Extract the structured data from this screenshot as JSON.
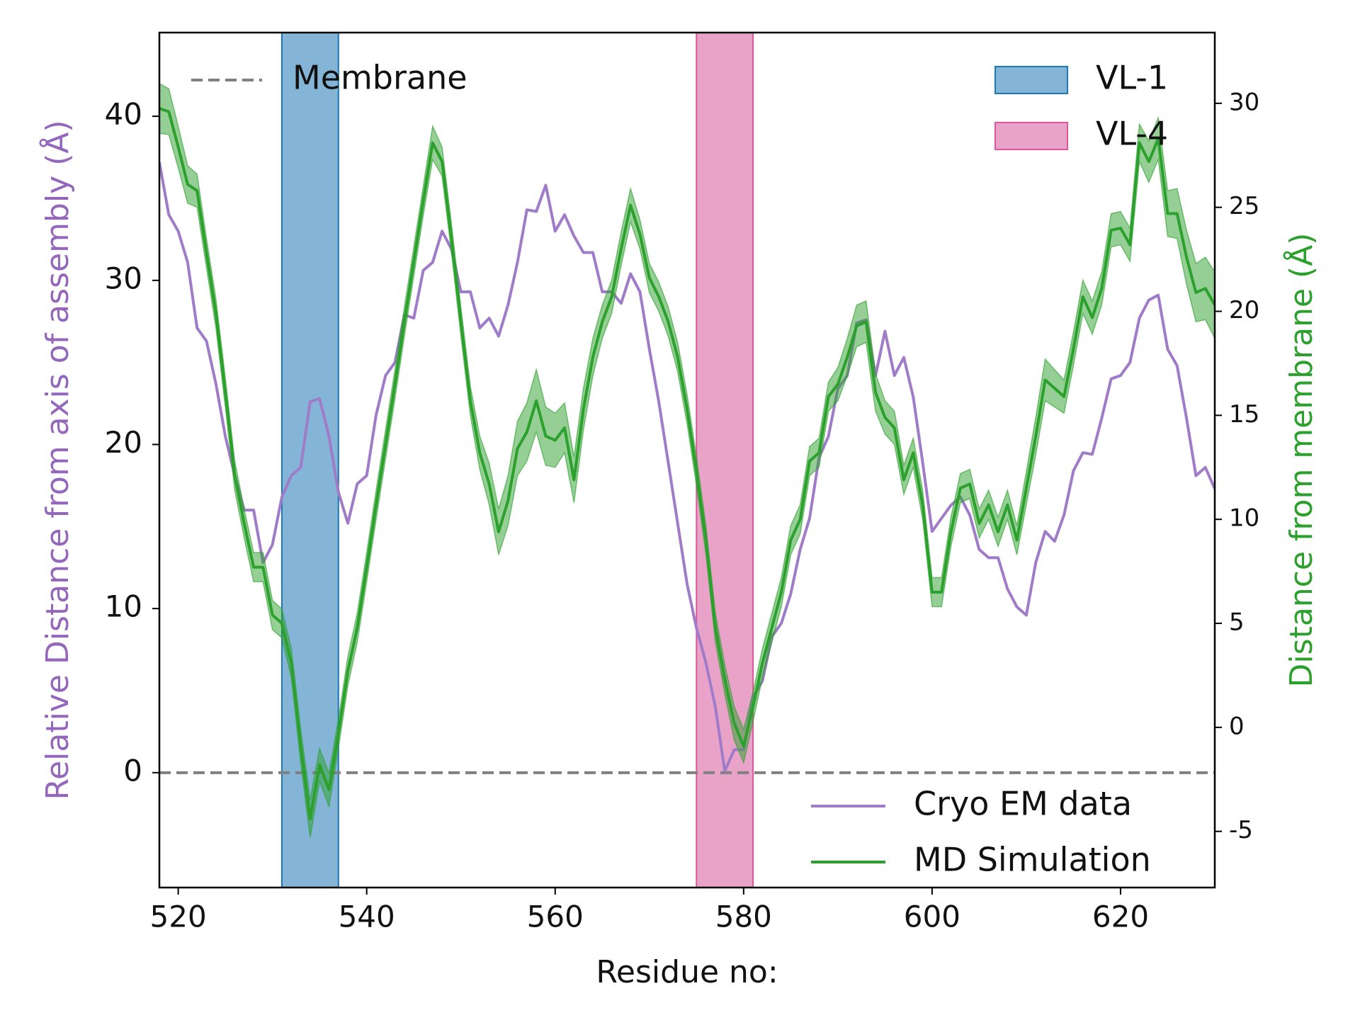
{
  "chart_data": {
    "type": "line",
    "xlabel": "Residue no:",
    "ylabel": "Relative Distance from axis of assembly (Å)",
    "y2label": "Distance from membrane (Å)",
    "ylabel_color": "#9467bd",
    "y2label_color": "#2ca02c",
    "xlim": [
      518,
      630
    ],
    "ylim": [
      -7,
      45.1
    ],
    "y2lim": [
      -7.7,
      33.4
    ],
    "xticks": [
      520,
      540,
      560,
      580,
      600,
      620
    ],
    "yticks": [
      0,
      10,
      20,
      30,
      40
    ],
    "y2ticks": [
      -5,
      0,
      5,
      10,
      15,
      20,
      25,
      30
    ],
    "grid": false,
    "legend": "lower right",
    "spans_legend": "upper right",
    "hlines_legend": "upper left",
    "x": [
      518,
      519,
      520,
      521,
      522,
      523,
      524,
      525,
      526,
      527,
      528,
      529,
      530,
      531,
      532,
      533,
      534,
      535,
      536,
      537,
      538,
      539,
      540,
      541,
      542,
      543,
      544,
      545,
      546,
      547,
      548,
      549,
      550,
      551,
      552,
      553,
      554,
      555,
      556,
      557,
      558,
      559,
      560,
      561,
      562,
      563,
      564,
      565,
      566,
      567,
      568,
      569,
      570,
      571,
      572,
      573,
      574,
      575,
      576,
      577,
      578,
      579,
      580,
      581,
      582,
      583,
      584,
      585,
      586,
      587,
      588,
      589,
      590,
      591,
      592,
      593,
      594,
      595,
      596,
      597,
      598,
      599,
      600,
      601,
      602,
      603,
      604,
      605,
      606,
      607,
      608,
      609,
      610,
      611,
      612,
      613,
      614,
      615,
      616,
      617,
      618,
      619,
      620,
      621,
      622,
      623,
      624,
      625,
      626,
      627,
      628,
      629,
      630
    ],
    "series": [
      {
        "name": "Cryo EM data",
        "color": "#a07cc8",
        "axis": "y",
        "values": [
          37.2,
          34.0,
          33.0,
          31.1,
          27.1,
          26.3,
          23.7,
          20.5,
          18.1,
          16.0,
          16.0,
          12.8,
          13.9,
          16.8,
          18.1,
          18.6,
          22.6,
          22.8,
          20.5,
          17.1,
          15.2,
          17.6,
          18.1,
          21.8,
          24.2,
          25.0,
          27.9,
          27.7,
          30.6,
          31.1,
          33.0,
          31.9,
          29.3,
          29.3,
          27.1,
          27.7,
          26.6,
          28.5,
          31.1,
          34.3,
          34.2,
          35.8,
          33.0,
          34.0,
          32.7,
          31.7,
          31.7,
          29.3,
          29.3,
          28.6,
          30.4,
          29.3,
          25.8,
          22.6,
          18.9,
          15.2,
          11.5,
          8.8,
          6.7,
          4.0,
          0.1,
          1.4,
          1.4,
          4.6,
          5.6,
          8.3,
          9.1,
          10.9,
          13.6,
          15.5,
          19.2,
          20.5,
          23.4,
          24.2,
          27.4,
          27.6,
          24.2,
          26.9,
          24.2,
          25.3,
          22.9,
          18.9,
          14.7,
          15.5,
          16.3,
          16.8,
          15.7,
          13.6,
          13.1,
          13.1,
          11.2,
          10.1,
          9.6,
          12.8,
          14.7,
          14.1,
          15.7,
          18.4,
          19.5,
          19.4,
          21.6,
          24.0,
          24.2,
          25.0,
          27.7,
          28.8,
          29.1,
          25.8,
          24.8,
          21.6,
          18.1,
          18.6,
          17.3
        ]
      },
      {
        "name": "MD Simulation",
        "color": "#2ca02c",
        "axis": "y2",
        "values": [
          29.75,
          29.6,
          27.9,
          26.1,
          25.8,
          22.8,
          19.9,
          16.1,
          12.1,
          9.8,
          7.7,
          7.7,
          5.4,
          5.0,
          3.1,
          -0.9,
          -4.4,
          -1.8,
          -3.0,
          -0.3,
          2.7,
          4.8,
          7.7,
          10.7,
          13.6,
          16.5,
          19.5,
          22.4,
          25.3,
          28.1,
          27.2,
          23.5,
          19.5,
          15.7,
          13.2,
          11.7,
          9.4,
          10.9,
          13.4,
          14.2,
          15.7,
          14.0,
          13.8,
          14.4,
          11.9,
          15.3,
          17.8,
          19.5,
          20.7,
          23.0,
          25.1,
          23.7,
          21.6,
          20.7,
          19.5,
          17.8,
          15.3,
          12.3,
          9.0,
          4.8,
          2.3,
          0.2,
          -0.9,
          1.0,
          3.1,
          4.8,
          6.5,
          9.0,
          10.0,
          12.8,
          13.2,
          15.9,
          16.5,
          17.8,
          19.3,
          19.5,
          16.1,
          14.9,
          14.4,
          11.9,
          13.2,
          10.7,
          6.5,
          6.5,
          9.4,
          11.5,
          11.7,
          9.8,
          10.7,
          9.4,
          10.7,
          9.0,
          11.5,
          14.0,
          16.7,
          16.3,
          15.9,
          18.2,
          20.7,
          19.7,
          21.1,
          23.9,
          24.0,
          23.2,
          28.1,
          27.2,
          28.3,
          24.7,
          24.7,
          22.6,
          20.9,
          21.1,
          20.3
        ],
        "error": [
          1.2,
          1.1,
          1.0,
          0.9,
          0.8,
          0.7,
          0.7,
          0.7,
          0.7,
          0.7,
          0.7,
          0.7,
          0.7,
          0.7,
          0.7,
          0.8,
          0.9,
          0.8,
          0.8,
          0.7,
          0.7,
          0.7,
          0.7,
          0.7,
          0.7,
          0.7,
          0.7,
          0.7,
          0.7,
          0.8,
          0.7,
          0.7,
          0.7,
          0.7,
          0.8,
          1.0,
          1.1,
          1.2,
          1.3,
          1.4,
          1.5,
          1.4,
          1.3,
          1.2,
          1.1,
          1.0,
          0.9,
          0.8,
          0.8,
          0.8,
          0.8,
          0.7,
          0.7,
          0.7,
          0.7,
          0.7,
          0.7,
          0.7,
          0.7,
          0.7,
          0.7,
          0.8,
          0.8,
          0.7,
          0.7,
          0.7,
          0.7,
          0.7,
          0.7,
          0.7,
          0.7,
          0.7,
          0.8,
          0.9,
          1.0,
          1.0,
          0.9,
          0.8,
          0.8,
          0.7,
          0.7,
          0.7,
          0.7,
          0.7,
          0.7,
          0.7,
          0.7,
          0.7,
          0.7,
          0.7,
          0.7,
          0.7,
          0.8,
          0.9,
          1.0,
          0.9,
          0.8,
          0.8,
          0.8,
          0.8,
          0.8,
          0.8,
          0.8,
          0.8,
          0.9,
          1.0,
          1.0,
          1.1,
          1.2,
          1.3,
          1.4,
          1.5,
          1.6
        ]
      }
    ],
    "spans": [
      {
        "name": "VL-1",
        "start": 531,
        "end": 537,
        "color": "#1f77b4"
      },
      {
        "name": "VL-4",
        "start": 575,
        "end": 581,
        "color": "#d9579a"
      }
    ],
    "hlines": [
      {
        "name": "Membrane",
        "y": 0,
        "color": "#808080"
      }
    ]
  }
}
